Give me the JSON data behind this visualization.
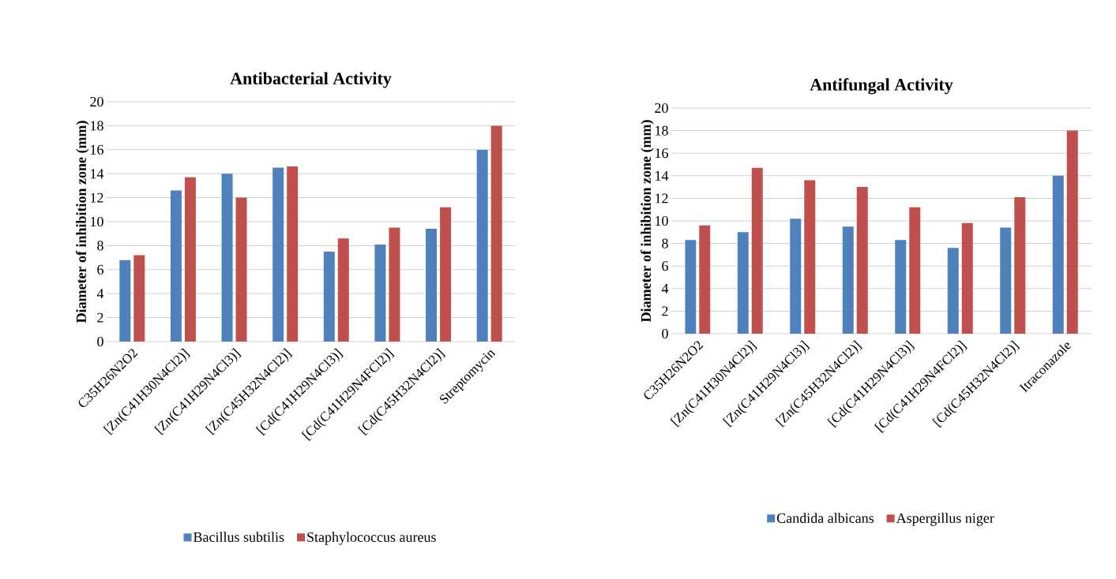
{
  "chart_data": [
    {
      "type": "bar",
      "title": "Antibacterial Activity",
      "ylabel": "Diameter  of inhibition zone (mm)",
      "categories": [
        "C35H26N2O2",
        "[Zn(C41H30N4Cl2)]",
        "[Zn(C41H29N4Cl3)]",
        "[Zn(C45H32N4Cl2)]",
        "[Cd(C41H29N4Cl3)]",
        "[Cd(C41H29N4FCl2)]",
        "[Cd(C45H32N4Cl2)]",
        "Streptomycin"
      ],
      "series": [
        {
          "name": "Bacillus subtilis",
          "color": "#4f81bd",
          "values": [
            6.8,
            12.6,
            14.0,
            14.5,
            7.5,
            8.1,
            9.4,
            16
          ]
        },
        {
          "name": "Staphylococcus aureus",
          "color": "#c0504d",
          "values": [
            7.2,
            13.7,
            12.0,
            14.6,
            8.6,
            9.5,
            11.2,
            18
          ]
        }
      ],
      "ylim": [
        0,
        20
      ],
      "yticks": [
        0,
        2,
        4,
        6,
        8,
        10,
        12,
        14,
        16,
        18,
        20
      ],
      "grid": "y",
      "legend": "bottom"
    },
    {
      "type": "bar",
      "title": "Antifungal Activity",
      "ylabel": "Diameter  of inhibition zone (mm)",
      "categories": [
        "C35H26N2O2",
        "[Zn(C41H30N4Cl2)]",
        "[Zn(C41H29N4Cl3)]",
        "[Zn(C45H32N4Cl2)]",
        "[Cd(C41H29N4Cl3)]",
        "[Cd(C41H29N4FCl2)]",
        "[Cd(C45H32N4Cl2)]",
        "Itraconazole"
      ],
      "series": [
        {
          "name": "Candida albicans",
          "color": "#4f81bd",
          "values": [
            8.3,
            9.0,
            10.2,
            9.5,
            8.3,
            7.6,
            9.4,
            14
          ]
        },
        {
          "name": "Aspergillus niger",
          "color": "#c0504d",
          "values": [
            9.6,
            14.7,
            13.6,
            13.0,
            11.2,
            9.8,
            12.1,
            18
          ]
        }
      ],
      "ylim": [
        0,
        20
      ],
      "yticks": [
        0,
        2,
        4,
        6,
        8,
        10,
        12,
        14,
        16,
        18,
        20
      ],
      "grid": "y",
      "legend": "bottom"
    }
  ]
}
